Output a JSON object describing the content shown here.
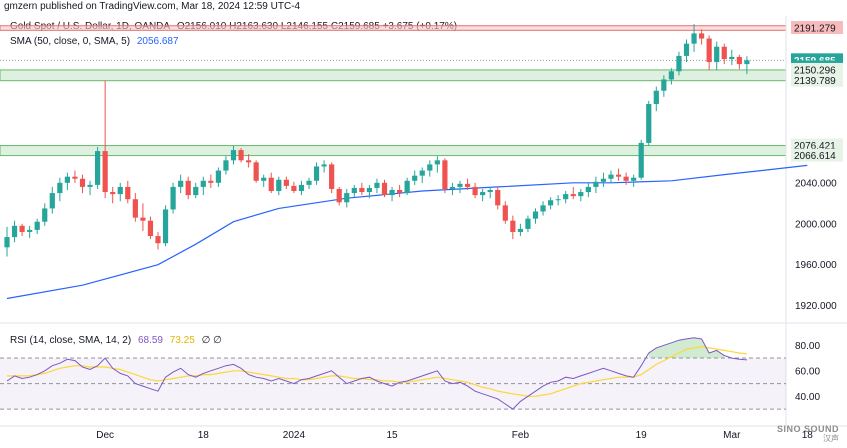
{
  "header": {
    "published": "gmzern published on TradingView.com, Mar 18, 2024 12:59 UTC-4"
  },
  "legend": {
    "symbol": "Gold Spot / U.S. Dollar, 1D, OANDA",
    "ohlc": "O2156.010  H2163.630  L2146.155  C2159.685  +3.675 (+0.17%)",
    "sma_label": "SMA (50, close, 0, SMA, 5)",
    "sma_value": "2056.687",
    "rsi_label": "RSI (14, close, SMA, 14, 2)",
    "rsi_value": "68.59",
    "rsi_ma_value": "73.25",
    "rsi_extra": "∅  ∅"
  },
  "watermark": {
    "line1": "SINO SOUND",
    "line2": "汉声"
  },
  "colors": {
    "up": "#26a69a",
    "down": "#ef5350",
    "sma": "#2962ff",
    "rsi": "#7e57c2",
    "rsi_ma": "#fdd835",
    "resistance_zone": "#f7c6c6",
    "support_zone": "#c8e6c9"
  },
  "chart_data": {
    "type": "candlestick",
    "currency_label": "USD",
    "price_axis": {
      "ylim": [
        1905,
        2203
      ],
      "ticks": [
        "1920.000",
        "1960.000",
        "2000.000",
        "2040.000"
      ]
    },
    "price_labels": [
      {
        "text": "2191.279",
        "value": 2191.279,
        "style": "zone-red"
      },
      {
        "text": "2159.685",
        "value": 2159.685,
        "style": "last"
      },
      {
        "text": "04:00:43",
        "value": 2152.8,
        "style": "timer"
      },
      {
        "text": "2150.296",
        "value": 2150.296,
        "style": "zone-green"
      },
      {
        "text": "2139.789",
        "value": 2139.789,
        "style": "zone-green"
      },
      {
        "text": "2076.421",
        "value": 2076.421,
        "style": "zone-green"
      },
      {
        "text": "2066.614",
        "value": 2066.614,
        "style": "zone-green"
      }
    ],
    "zones": [
      {
        "low": 2189.0,
        "high": 2193.5,
        "kind": "resistance"
      },
      {
        "low": 2139.789,
        "high": 2150.296,
        "kind": "support"
      },
      {
        "low": 2066.614,
        "high": 2076.421,
        "kind": "support"
      }
    ],
    "x_axis": {
      "labels": [
        {
          "text": "Dec",
          "index": 13
        },
        {
          "text": "18",
          "index": 26
        },
        {
          "text": "2024",
          "index": 38
        },
        {
          "text": "15",
          "index": 51
        },
        {
          "text": "Feb",
          "index": 68
        },
        {
          "text": "19",
          "index": 84
        },
        {
          "text": "Mar",
          "index": 96
        },
        {
          "text": "18",
          "index": 106
        }
      ]
    },
    "candles": [
      [
        1977,
        1997,
        1968,
        1987
      ],
      [
        1987,
        2003,
        1982,
        1998
      ],
      [
        1998,
        2000,
        1988,
        1992
      ],
      [
        1992,
        1998,
        1986,
        1994
      ],
      [
        1994,
        2005,
        1990,
        2002
      ],
      [
        2002,
        2020,
        1998,
        2015
      ],
      [
        2015,
        2036,
        2010,
        2030
      ],
      [
        2030,
        2045,
        2022,
        2040
      ],
      [
        2040,
        2050,
        2033,
        2046
      ],
      [
        2046,
        2052,
        2040,
        2044
      ],
      [
        2044,
        2048,
        2030,
        2036
      ],
      [
        2036,
        2042,
        2028,
        2038
      ],
      [
        2038,
        2075,
        2034,
        2071
      ],
      [
        2071,
        2140,
        2025,
        2031
      ],
      [
        2031,
        2036,
        2020,
        2029
      ],
      [
        2029,
        2040,
        2022,
        2036
      ],
      [
        2036,
        2042,
        2020,
        2024
      ],
      [
        2024,
        2030,
        2002,
        2006
      ],
      [
        2006,
        2020,
        1993,
        2003
      ],
      [
        2003,
        2007,
        1985,
        1988
      ],
      [
        1988,
        1992,
        1975,
        1981
      ],
      [
        1981,
        2018,
        1978,
        2014
      ],
      [
        2014,
        2040,
        2010,
        2036
      ],
      [
        2036,
        2048,
        2030,
        2042
      ],
      [
        2042,
        2046,
        2024,
        2028
      ],
      [
        2028,
        2040,
        2025,
        2036
      ],
      [
        2036,
        2046,
        2028,
        2042
      ],
      [
        2042,
        2048,
        2035,
        2040
      ],
      [
        2040,
        2055,
        2036,
        2052
      ],
      [
        2052,
        2066,
        2048,
        2062
      ],
      [
        2062,
        2076,
        2058,
        2072
      ],
      [
        2072,
        2074,
        2060,
        2062
      ],
      [
        2062,
        2068,
        2055,
        2060
      ],
      [
        2060,
        2062,
        2040,
        2042
      ],
      [
        2042,
        2048,
        2036,
        2045
      ],
      [
        2045,
        2050,
        2030,
        2032
      ],
      [
        2032,
        2046,
        2028,
        2043
      ],
      [
        2043,
        2046,
        2034,
        2037
      ],
      [
        2037,
        2041,
        2030,
        2032
      ],
      [
        2032,
        2042,
        2028,
        2038
      ],
      [
        2038,
        2045,
        2034,
        2042
      ],
      [
        2042,
        2060,
        2038,
        2056
      ],
      [
        2056,
        2062,
        2050,
        2058
      ],
      [
        2058,
        2060,
        2030,
        2034
      ],
      [
        2034,
        2036,
        2018,
        2021
      ],
      [
        2021,
        2034,
        2016,
        2030
      ],
      [
        2030,
        2038,
        2026,
        2035
      ],
      [
        2035,
        2040,
        2028,
        2031
      ],
      [
        2031,
        2038,
        2025,
        2035
      ],
      [
        2035,
        2044,
        2030,
        2040
      ],
      [
        2040,
        2043,
        2026,
        2028
      ],
      [
        2028,
        2036,
        2022,
        2033
      ],
      [
        2033,
        2038,
        2026,
        2030
      ],
      [
        2030,
        2045,
        2028,
        2042
      ],
      [
        2042,
        2052,
        2038,
        2047
      ],
      [
        2047,
        2055,
        2040,
        2052
      ],
      [
        2052,
        2062,
        2046,
        2058
      ],
      [
        2058,
        2066,
        2050,
        2062
      ],
      [
        2062,
        2064,
        2030,
        2034
      ],
      [
        2034,
        2040,
        2028,
        2036
      ],
      [
        2036,
        2042,
        2030,
        2039
      ],
      [
        2039,
        2044,
        2033,
        2036
      ],
      [
        2036,
        2040,
        2025,
        2028
      ],
      [
        2028,
        2034,
        2022,
        2031
      ],
      [
        2031,
        2036,
        2025,
        2033
      ],
      [
        2033,
        2036,
        2014,
        2018
      ],
      [
        2018,
        2022,
        2000,
        2003
      ],
      [
        2003,
        2008,
        1985,
        1992
      ],
      [
        1992,
        2000,
        1988,
        1995
      ],
      [
        1995,
        2008,
        1992,
        2005
      ],
      [
        2005,
        2015,
        2000,
        2012
      ],
      [
        2012,
        2022,
        2008,
        2018
      ],
      [
        2018,
        2026,
        2014,
        2023
      ],
      [
        2023,
        2028,
        2018,
        2024
      ],
      [
        2024,
        2032,
        2020,
        2029
      ],
      [
        2029,
        2036,
        2024,
        2027
      ],
      [
        2027,
        2034,
        2022,
        2031
      ],
      [
        2031,
        2040,
        2026,
        2036
      ],
      [
        2036,
        2046,
        2030,
        2041
      ],
      [
        2041,
        2050,
        2036,
        2044
      ],
      [
        2044,
        2052,
        2040,
        2048
      ],
      [
        2048,
        2054,
        2042,
        2046
      ],
      [
        2046,
        2050,
        2038,
        2042
      ],
      [
        2042,
        2048,
        2036,
        2045
      ],
      [
        2045,
        2082,
        2043,
        2079
      ],
      [
        2079,
        2120,
        2076,
        2117
      ],
      [
        2117,
        2134,
        2110,
        2130
      ],
      [
        2130,
        2145,
        2124,
        2141
      ],
      [
        2141,
        2152,
        2136,
        2149
      ],
      [
        2149,
        2168,
        2145,
        2164
      ],
      [
        2164,
        2180,
        2158,
        2176
      ],
      [
        2176,
        2195,
        2168,
        2186
      ],
      [
        2186,
        2190,
        2175,
        2181
      ],
      [
        2181,
        2184,
        2150,
        2158
      ],
      [
        2158,
        2178,
        2150,
        2173
      ],
      [
        2173,
        2176,
        2156,
        2161
      ],
      [
        2161,
        2170,
        2155,
        2163
      ],
      [
        2163,
        2165,
        2151,
        2156
      ],
      [
        2156,
        2163.63,
        2146.155,
        2159.685
      ]
    ],
    "sma": {
      "name": "SMA (50, close, 0, SMA, 5)",
      "points": [
        [
          0,
          1927
        ],
        [
          10,
          1940
        ],
        [
          20,
          1960
        ],
        [
          25,
          1980
        ],
        [
          30,
          2002
        ],
        [
          36,
          2015
        ],
        [
          45,
          2025
        ],
        [
          55,
          2032
        ],
        [
          65,
          2036
        ],
        [
          75,
          2040
        ],
        [
          80,
          2040
        ],
        [
          88,
          2042
        ],
        [
          95,
          2048
        ],
        [
          100,
          2052
        ],
        [
          106,
          2057
        ]
      ]
    },
    "rsi": {
      "ylim": [
        23,
        92
      ],
      "ticks": [
        "40.00",
        "60.00",
        "80.00"
      ],
      "levels": [
        70,
        50,
        30
      ],
      "values": [
        52,
        56,
        54,
        55,
        57,
        60,
        64,
        66,
        69,
        68,
        63,
        61,
        64,
        70,
        62,
        58,
        56,
        50,
        48,
        46,
        44,
        55,
        59,
        62,
        57,
        55,
        58,
        60,
        62,
        64,
        65,
        62,
        57,
        55,
        54,
        52,
        54,
        52,
        50,
        53,
        54,
        56,
        58,
        60,
        55,
        50,
        52,
        54,
        55,
        52,
        50,
        48,
        51,
        52,
        54,
        56,
        58,
        60,
        52,
        50,
        51,
        48,
        44,
        42,
        40,
        38,
        34,
        30,
        36,
        40,
        44,
        48,
        51,
        52,
        55,
        54,
        56,
        58,
        60,
        62,
        60,
        58,
        56,
        55,
        64,
        74,
        78,
        80,
        82,
        84,
        85,
        86,
        85,
        74,
        76,
        72,
        70,
        69,
        68.59
      ],
      "ma_values": [
        56,
        56,
        56,
        56,
        57,
        58,
        60,
        62,
        63,
        64,
        64,
        63,
        63,
        63,
        62,
        61,
        59,
        57,
        55,
        53,
        52,
        53,
        54,
        55,
        56,
        56,
        57,
        57,
        58,
        59,
        60,
        60,
        59,
        58,
        57,
        56,
        55,
        54,
        54,
        53,
        53,
        54,
        55,
        56,
        56,
        55,
        54,
        54,
        53,
        53,
        52,
        52,
        51,
        51,
        52,
        53,
        54,
        55,
        54,
        53,
        52,
        51,
        49,
        47,
        46,
        44,
        43,
        42,
        41,
        40,
        40,
        41,
        42,
        44,
        46,
        48,
        50,
        51,
        52,
        53,
        54,
        55,
        55,
        55,
        57,
        61,
        65,
        68,
        71,
        74,
        77,
        78,
        79,
        78,
        77,
        76,
        75,
        74,
        73.25
      ]
    }
  }
}
